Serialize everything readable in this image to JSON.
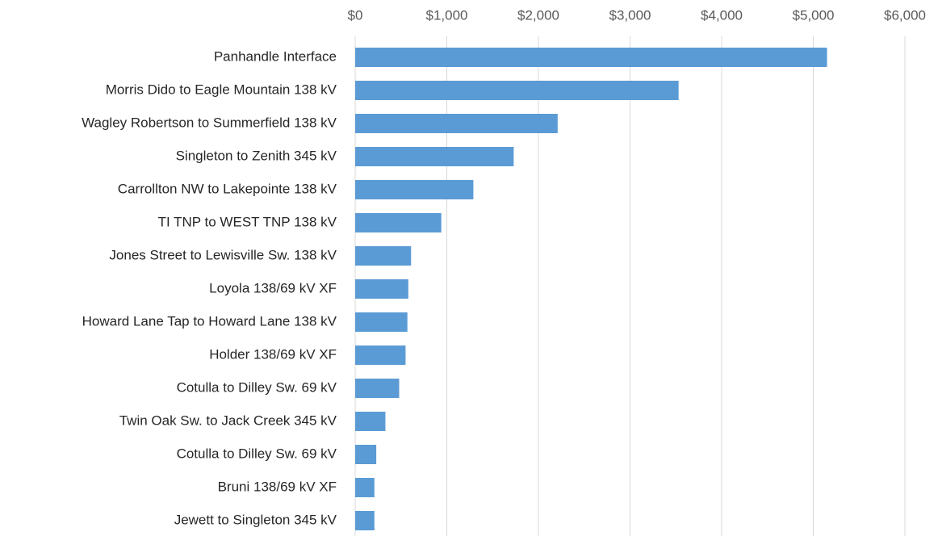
{
  "chart_data": {
    "type": "bar",
    "orientation": "horizontal",
    "color": "#5b9bd5",
    "grid": true,
    "categories": [
      "Panhandle Interface",
      "Morris Dido to Eagle Mountain 138 kV",
      "Wagley Robertson to Summerfield 138 kV",
      "Singleton to Zenith 345 kV",
      "Carrollton NW to Lakepointe 138 kV",
      "TI TNP to WEST TNP 138 kV",
      "Jones Street to Lewisville Sw. 138 kV",
      "Loyola 138/69 kV XF",
      "Howard Lane Tap to Howard Lane 138 kV",
      "Holder 138/69 kV XF",
      "Cotulla to Dilley Sw. 69 kV",
      "Twin Oak Sw. to Jack Creek 345 kV",
      "Cotulla to Dilley Sw. 69 kV",
      "Bruni 138/69 kV XF",
      "Jewett to Singleton 345 kV"
    ],
    "values": [
      5150,
      3530,
      2210,
      1730,
      1290,
      940,
      610,
      580,
      570,
      550,
      480,
      330,
      230,
      210,
      210
    ],
    "xlim": [
      0,
      6000
    ],
    "xticks": [
      {
        "value": 0,
        "label": "$0"
      },
      {
        "value": 1000,
        "label": "$1,000"
      },
      {
        "value": 2000,
        "label": "$2,000"
      },
      {
        "value": 3000,
        "label": "$3,000"
      },
      {
        "value": 4000,
        "label": "$4,000"
      },
      {
        "value": 5000,
        "label": "$5,000"
      },
      {
        "value": 6000,
        "label": "$6,000"
      }
    ]
  }
}
